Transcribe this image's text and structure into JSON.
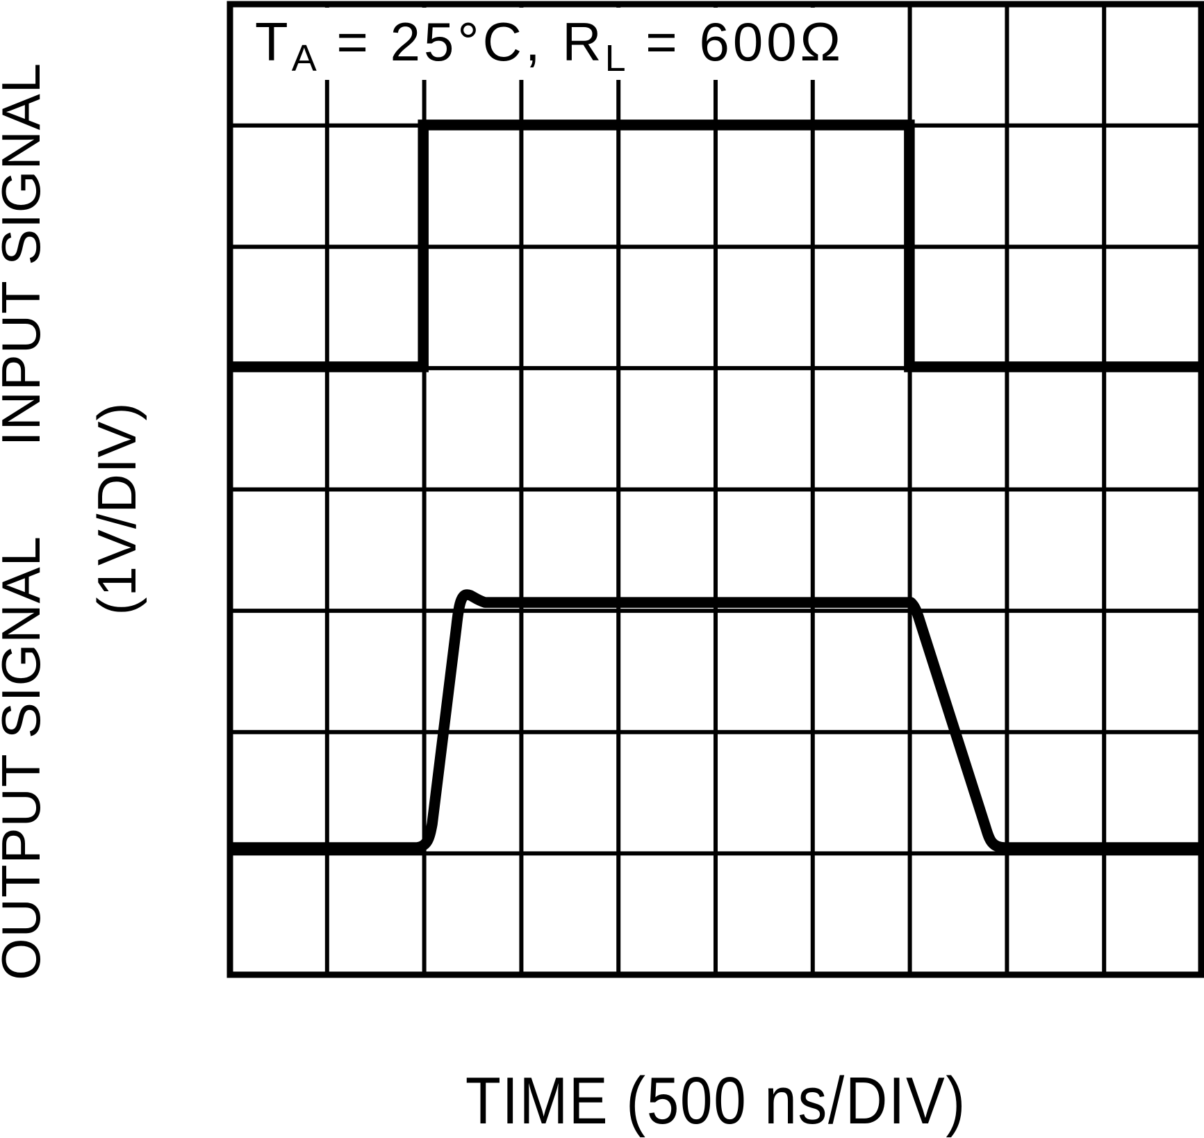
{
  "page": {
    "background_color": "#ffffff",
    "ink_color": "#000000",
    "description": "Datasheet oscilloscope photograph style figure: large-signal pulse response"
  },
  "chart_data": {
    "type": "line",
    "subtype": "oscilloscope-graticule-pulse-response",
    "title_annotation": {
      "full": "TA = 25°C, RL = 600Ω",
      "parts": {
        "t": "T",
        "t_sub": "A",
        "mid": " = 25°C, R",
        "r_sub": "L",
        "end": " = 600Ω"
      }
    },
    "xlabel": "TIME (500 ns/DIV)",
    "ylabels": {
      "input": "INPUT SIGNAL",
      "output": "OUTPUT SIGNAL",
      "scale": "(1V/DIV)"
    },
    "x_axis": {
      "divisions": 10,
      "per_division": "500 ns",
      "unit": "time"
    },
    "y_axis": {
      "divisions": 8,
      "per_division": "1 V",
      "unit": "voltage"
    },
    "grid": true,
    "legend": "none",
    "series": [
      {
        "name": "INPUT SIGNAL",
        "trace": "input",
        "shape": "square pulse, rises at 2 div, falls at 7 div, amplitude 2 divisions (2 V)",
        "levels_div": {
          "low_from_top": 2.989,
          "high_from_top": 0.996
        },
        "path": [
          [
            "M",
            0,
            2.989
          ],
          [
            "L",
            1.99,
            2.989
          ],
          [
            "L",
            1.99,
            0.996
          ],
          [
            "L",
            6.995,
            0.996
          ],
          [
            "L",
            6.995,
            2.989
          ],
          [
            "L",
            10,
            2.989
          ]
        ]
      },
      {
        "name": "OUTPUT SIGNAL",
        "trace": "output",
        "shape": "slew-limited pulse: fast rise with small overshoot, flat top, slower falling ramp",
        "levels_div": {
          "low_from_top": 6.952,
          "high_from_top": 4.931,
          "overshoot_peak_from_top": 4.868
        },
        "path": [
          [
            "M",
            0,
            6.952
          ],
          [
            "L",
            1.924,
            6.952
          ],
          [
            "C",
            2.032,
            6.94,
            2.053,
            6.882,
            2.082,
            6.757
          ],
          [
            "L",
            2.332,
            5.13
          ],
          [
            "C",
            2.353,
            4.975,
            2.375,
            4.873,
            2.432,
            4.868
          ],
          [
            "C",
            2.489,
            4.863,
            2.511,
            4.902,
            2.625,
            4.931
          ],
          [
            "L",
            7.01,
            4.931
          ],
          [
            "C",
            7.053,
            4.965,
            7.067,
            4.999,
            7.089,
            5.051
          ],
          [
            "L",
            7.783,
            6.792
          ],
          [
            "C",
            7.819,
            6.889,
            7.848,
            6.952,
            7.976,
            6.952
          ],
          [
            "L",
            10,
            6.952
          ]
        ]
      }
    ]
  }
}
